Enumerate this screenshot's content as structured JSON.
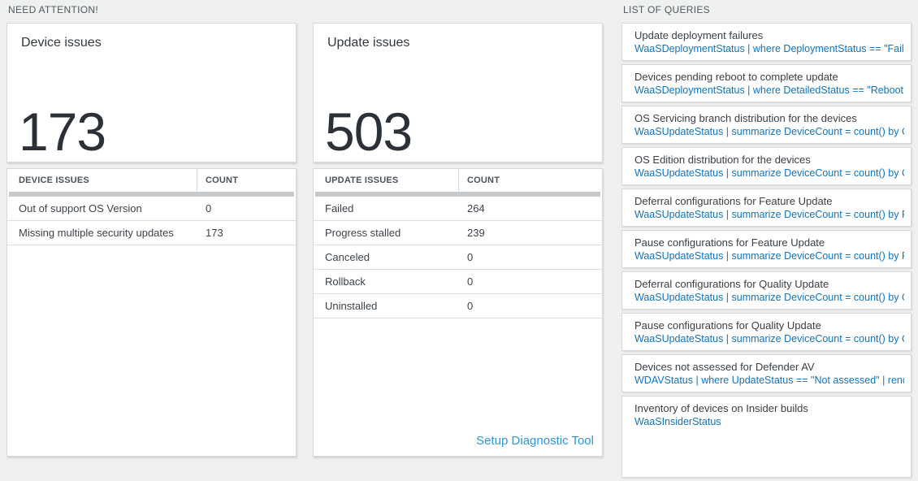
{
  "sections": {
    "need_attention": {
      "title": "NEED ATTENTION!"
    },
    "list_of_queries": {
      "title": "LIST OF QUERIES"
    }
  },
  "device_card": {
    "title": "Device issues",
    "count": "173",
    "table": {
      "headers": [
        "DEVICE ISSUES",
        "COUNT"
      ],
      "rows": [
        {
          "label": "Out of support OS Version",
          "count": "0"
        },
        {
          "label": "Missing multiple security updates",
          "count": "173"
        }
      ]
    }
  },
  "update_card": {
    "title": "Update issues",
    "count": "503",
    "table": {
      "headers": [
        "UPDATE ISSUES",
        "COUNT"
      ],
      "rows": [
        {
          "label": "Failed",
          "count": "264"
        },
        {
          "label": "Progress stalled",
          "count": "239"
        },
        {
          "label": "Canceled",
          "count": "0"
        },
        {
          "label": "Rollback",
          "count": "0"
        },
        {
          "label": "Uninstalled",
          "count": "0"
        }
      ]
    },
    "link_label": "Setup Diagnostic Tool"
  },
  "queries": {
    "items": [
      {
        "title": "Update deployment failures",
        "query": "WaaSDeploymentStatus | where DeploymentStatus == \"Failed\" |..."
      },
      {
        "title": "Devices pending reboot to complete update",
        "query": "WaaSDeploymentStatus | where DetailedStatus == \"Reboot pend..."
      },
      {
        "title": "OS Servicing branch distribution for the devices",
        "query": "WaaSUpdateStatus | summarize DeviceCount = count() by OSSer..."
      },
      {
        "title": "OS Edition distribution for the devices",
        "query": "WaaSUpdateStatus | summarize DeviceCount = count() by OSEdit..."
      },
      {
        "title": "Deferral configurations for Feature Update",
        "query": "WaaSUpdateStatus | summarize DeviceCount = count() by Featur..."
      },
      {
        "title": "Pause configurations for Feature Update",
        "query": "WaaSUpdateStatus | summarize DeviceCount = count() by Featur..."
      },
      {
        "title": "Deferral configurations for Quality Update",
        "query": "WaaSUpdateStatus | summarize DeviceCount = count() by Qualit..."
      },
      {
        "title": "Pause configurations for Quality Update",
        "query": "WaaSUpdateStatus | summarize DeviceCount = count() by Qualit..."
      },
      {
        "title": "Devices not assessed for Defender AV",
        "query": "WDAVStatus | where UpdateStatus == \"Not assessed\" | render ta..."
      },
      {
        "title": "Inventory of devices on Insider builds",
        "query": "WaaSInsiderStatus"
      }
    ]
  },
  "colors": {
    "query_blue": "#1173bd",
    "link_blue": "#2d96da",
    "number_dark": "#2b3137",
    "page_background": "#eff0f0"
  }
}
